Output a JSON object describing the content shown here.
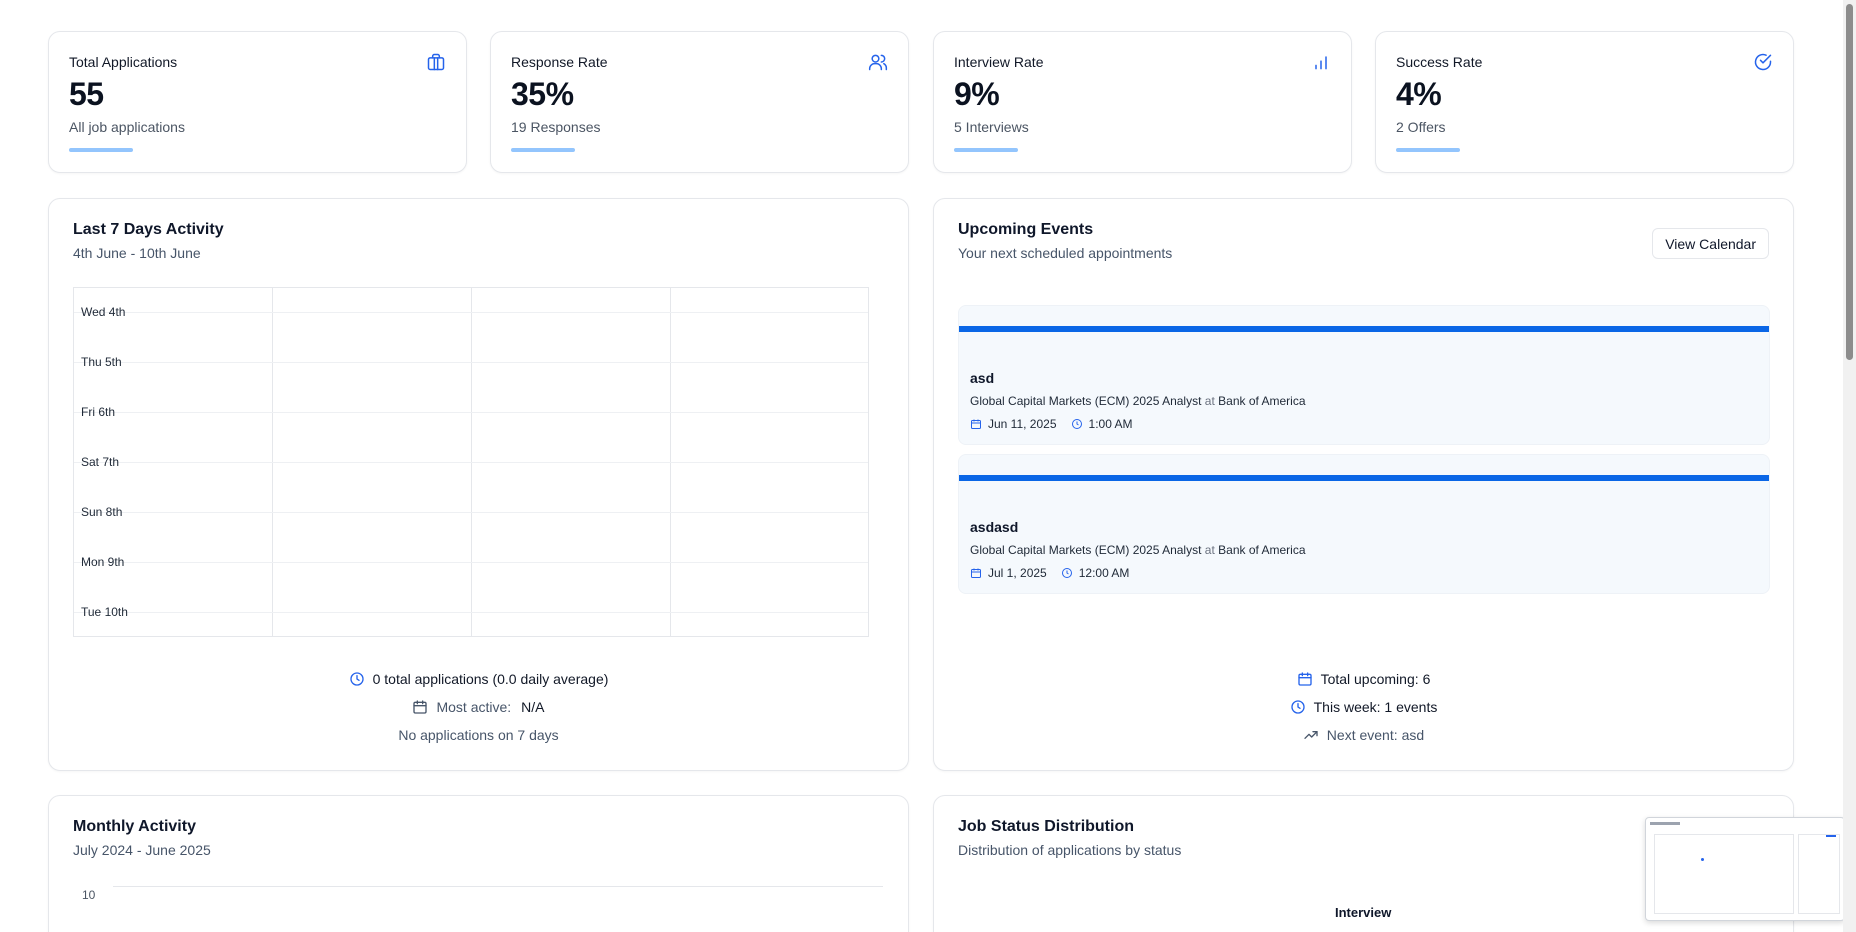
{
  "stats": [
    {
      "title": "Total Applications",
      "value": "55",
      "sub": "All job applications",
      "icon": "briefcase-icon"
    },
    {
      "title": "Response Rate",
      "value": "35%",
      "sub": "19 Responses",
      "icon": "users-icon"
    },
    {
      "title": "Interview Rate",
      "value": "9%",
      "sub": "5 Interviews",
      "icon": "bar-chart-icon"
    },
    {
      "title": "Success Rate",
      "value": "4%",
      "sub": "2 Offers",
      "icon": "check-circle-icon"
    }
  ],
  "activity": {
    "title": "Last 7 Days Activity",
    "subtitle": "4th June - 10th June",
    "days": [
      "Wed 4th",
      "Thu 5th",
      "Fri 6th",
      "Sat 7th",
      "Sun 8th",
      "Mon 9th",
      "Tue 10th"
    ],
    "total_line": "0 total applications (0.0 daily average)",
    "most_active_label": "Most active:",
    "most_active_value": "N/A",
    "note": "No applications on 7 days"
  },
  "events": {
    "title": "Upcoming Events",
    "subtitle": "Your next scheduled appointments",
    "view_calendar": "View Calendar",
    "items": [
      {
        "title": "asd",
        "role": "Global Capital Markets (ECM) 2025 Analyst",
        "at": "at",
        "company": "Bank of America",
        "date": "Jun 11, 2025",
        "time": "1:00 AM"
      },
      {
        "title": "asdasd",
        "role": "Global Capital Markets (ECM) 2025 Analyst",
        "at": "at",
        "company": "Bank of America",
        "date": "Jul 1, 2025",
        "time": "12:00 AM"
      }
    ],
    "total_upcoming_label": "Total upcoming:",
    "total_upcoming_value": "6",
    "this_week": "This week: 1 events",
    "next_event_label": "Next event:",
    "next_event_value": "asd"
  },
  "monthly": {
    "title": "Monthly Activity",
    "subtitle": "July 2024 - June 2025",
    "y_tick": "10"
  },
  "status": {
    "title": "Job Status Distribution",
    "subtitle": "Distribution of applications by status",
    "label": "Interview"
  },
  "colors": {
    "accent": "#2563eb",
    "stripe": "#0a66e6",
    "bar": "#93c5fd"
  }
}
